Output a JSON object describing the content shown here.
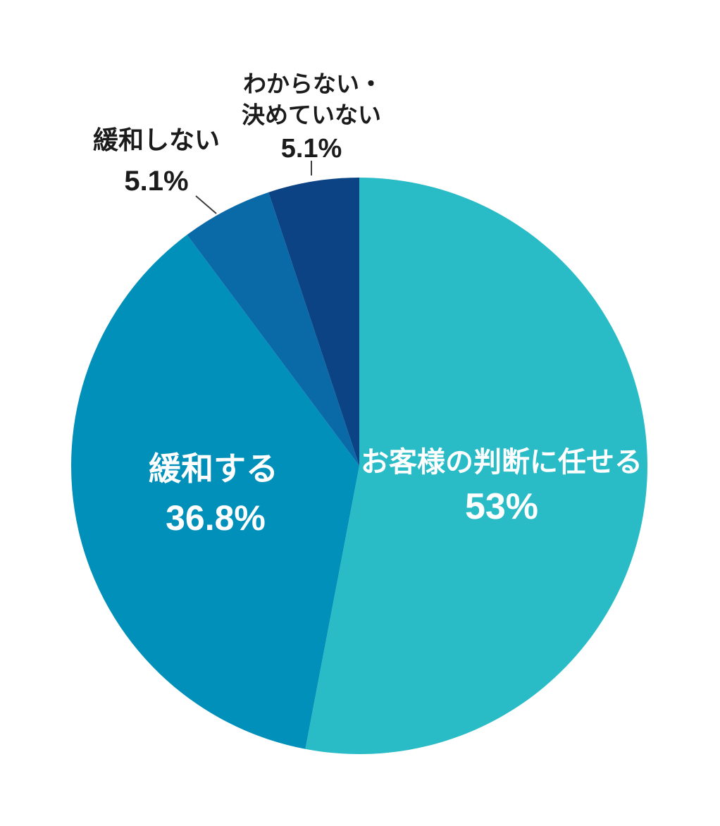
{
  "page": {
    "background_color": "#ffffff"
  },
  "chart_data": {
    "type": "pie",
    "title": "",
    "legend": "none",
    "direction": "clockwise",
    "start_angle_deg": 0,
    "total": 100,
    "slices": [
      {
        "id": "leave-to-customer",
        "label": "お客様の判断に任せる",
        "value": 53,
        "display_value": "53%",
        "color": "#29BCC7",
        "label_placement": "inside",
        "label_color": "#ffffff"
      },
      {
        "id": "relax",
        "label": "緩和する",
        "value": 36.8,
        "display_value": "36.8%",
        "color": "#0090BA",
        "label_placement": "inside",
        "label_color": "#ffffff"
      },
      {
        "id": "do-not-relax",
        "label": "緩和しない",
        "value": 5.1,
        "display_value": "5.1%",
        "color": "#0A6AA8",
        "label_placement": "outside",
        "label_color": "#1b1b1b"
      },
      {
        "id": "undecided",
        "label": "わからない・決めていない",
        "label_lines": [
          "わからない・",
          "決めていない"
        ],
        "value": 5.1,
        "display_value": "5.1%",
        "color": "#0C4384",
        "label_placement": "outside",
        "label_color": "#1b1b1b"
      }
    ]
  }
}
